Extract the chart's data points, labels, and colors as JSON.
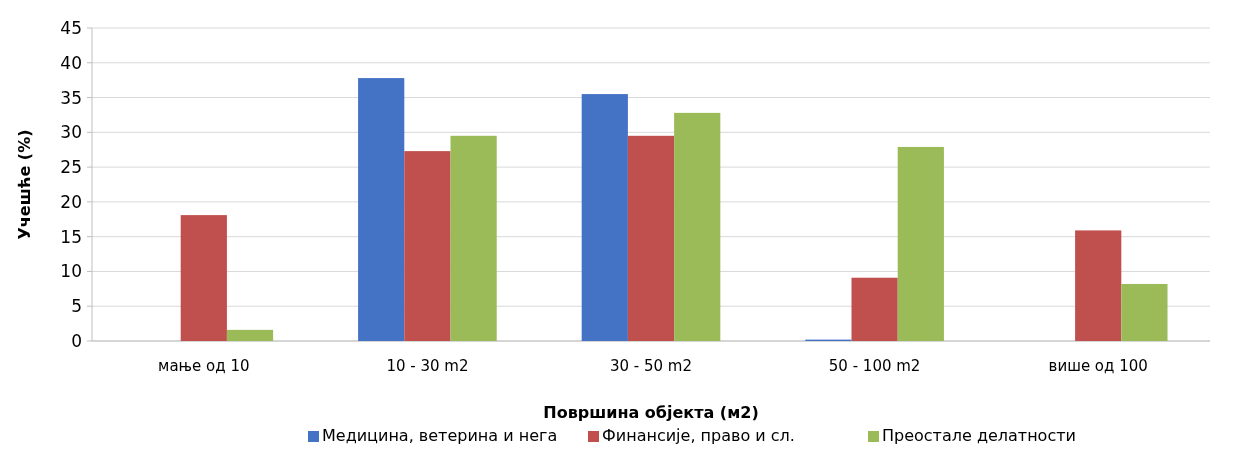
{
  "chart_data": {
    "type": "bar",
    "xlabel": "Површина објекта (м2)",
    "ylabel": "Учешће (%)",
    "categories": [
      "мање од 10",
      "10 - 30 m2",
      "30 - 50 m2",
      "50 - 100 m2",
      "више од 100"
    ],
    "series": [
      {
        "name": "Медицина, ветерина и нега",
        "color": "#4472c4",
        "values": [
          0,
          37.8,
          35.5,
          0.2,
          0
        ]
      },
      {
        "name": "Финансије, право и сл.",
        "color": "#c0504d",
        "values": [
          18.1,
          27.3,
          29.5,
          9.1,
          15.9
        ]
      },
      {
        "name": "Преостале делатности",
        "color": "#9bbb59",
        "values": [
          1.6,
          29.5,
          32.8,
          27.9,
          8.2
        ]
      }
    ],
    "ylim": [
      0,
      45
    ],
    "yticks": [
      0,
      5,
      10,
      15,
      20,
      25,
      30,
      35,
      40,
      45
    ],
    "grid": "y",
    "legend": "bottom"
  }
}
